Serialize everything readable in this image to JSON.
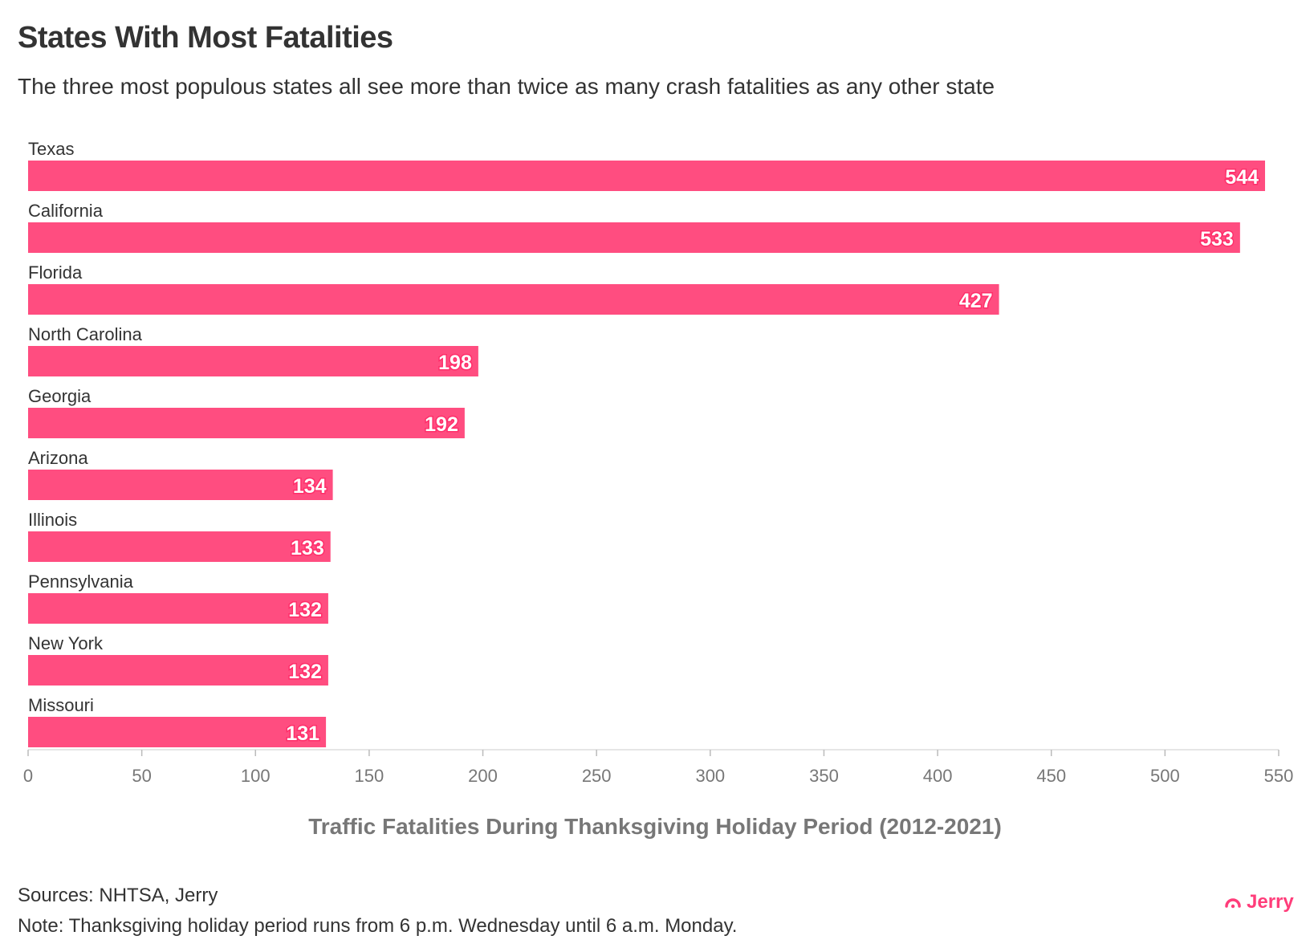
{
  "title": "States With Most Fatalities",
  "subtitle": "The three most populous states all see more than twice as many crash fatalities as any other state",
  "chart_data": {
    "type": "bar",
    "orientation": "horizontal",
    "categories": [
      "Texas",
      "California",
      "Florida",
      "North Carolina",
      "Georgia",
      "Arizona",
      "Illinois",
      "Pennsylvania",
      "New York",
      "Missouri"
    ],
    "values": [
      544,
      533,
      427,
      198,
      192,
      134,
      133,
      132,
      132,
      131
    ],
    "xlabel": "Traffic Fatalities During Thanksgiving Holiday Period (2012-2021)",
    "xlim": [
      0,
      550
    ],
    "xticks": [
      0,
      50,
      100,
      150,
      200,
      250,
      300,
      350,
      400,
      450,
      500,
      550
    ],
    "grid": false,
    "bar_color": "#ff4d80",
    "data_labels": true
  },
  "footer": {
    "sources": "Sources: NHTSA, Jerry",
    "note": "Note: Thanksgiving holiday period runs from 6 p.m. Wednesday until 6 a.m. Monday.",
    "logo": "Jerry"
  }
}
